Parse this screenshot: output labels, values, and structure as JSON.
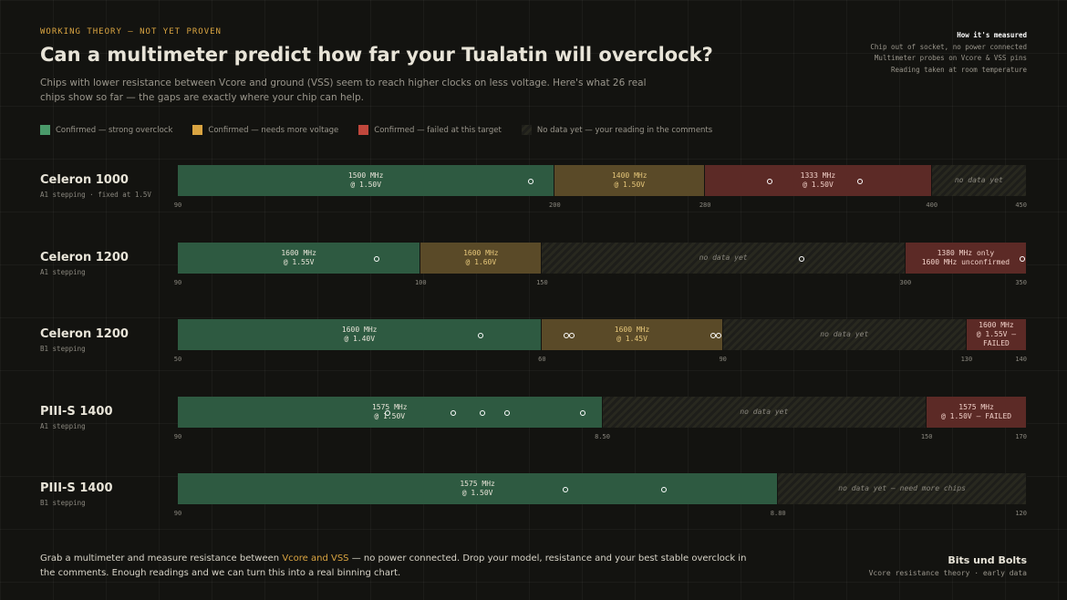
{
  "header": {
    "kicker": "WORKING THEORY — NOT YET PROVEN",
    "title": "Can a multimeter predict how far your Tualatin will overclock?",
    "subtitle": "Chips with lower resistance between Vcore and ground (VSS) seem to reach higher clocks on less voltage. Here's what 26 real chips show so far — the gaps are exactly where your chip can help."
  },
  "measure": {
    "title": "How it's measured",
    "lines": [
      "Chip out of socket, no power connected",
      "Multimeter probes on Vcore & VSS pins",
      "Reading taken at room temperature"
    ]
  },
  "legend": [
    {
      "kind": "strong",
      "label": "Confirmed — strong overclock"
    },
    {
      "kind": "voltage",
      "label": "Confirmed — needs more voltage"
    },
    {
      "kind": "failed",
      "label": "Confirmed — failed at this target"
    },
    {
      "kind": "nodata",
      "label": "No data yet — your reading in the comments"
    }
  ],
  "rows": [
    {
      "name": "Celeron 1000",
      "note": "A1 stepping · fixed at 1.5V",
      "ticks": [
        "90",
        "200",
        "280",
        "400",
        "450"
      ],
      "segments": [
        {
          "kind": "strong",
          "label": "1500 MHz\n@ 1.50V"
        },
        {
          "kind": "voltage",
          "label": "1400 MHz\n@ 1.50V"
        },
        {
          "kind": "failed",
          "label": "1333 MHz\n@ 1.50V"
        },
        {
          "kind": "nodata",
          "label": "no data yet"
        }
      ]
    },
    {
      "name": "Celeron 1200",
      "note": "A1 stepping",
      "ticks": [
        "90",
        "100",
        "150",
        "300",
        "350"
      ],
      "segments": [
        {
          "kind": "strong",
          "label": "1600 MHz\n@ 1.55V"
        },
        {
          "kind": "voltage",
          "label": "1600 MHz\n@ 1.60V"
        },
        {
          "kind": "nodata",
          "label": "no data yet"
        },
        {
          "kind": "failed",
          "label": "1380 MHz only\n1600 MHz unconfirmed"
        }
      ]
    },
    {
      "name": "Celeron 1200",
      "note": "B1 stepping",
      "ticks": [
        "50",
        "60",
        "90",
        "130",
        "140"
      ],
      "segments": [
        {
          "kind": "strong",
          "label": "1600 MHz\n@ 1.40V"
        },
        {
          "kind": "voltage",
          "label": "1600 MHz\n@ 1.45V"
        },
        {
          "kind": "nodata",
          "label": "no data yet"
        },
        {
          "kind": "failed",
          "label": "1600 MHz\n@ 1.55V —\nFAILED"
        }
      ]
    },
    {
      "name": "PIII-S 1400",
      "note": "A1 stepping",
      "ticks": [
        "90",
        "8.50",
        "150",
        "170"
      ],
      "segments": [
        {
          "kind": "strong",
          "label": "1575 MHz\n@ 1.50V"
        },
        {
          "kind": "nodata",
          "label": "no data yet"
        },
        {
          "kind": "failed",
          "label": "1575 MHz\n@ 1.50V — FAILED"
        }
      ]
    },
    {
      "name": "PIII-S 1400",
      "note": "B1 stepping",
      "ticks": [
        "90",
        "8.80",
        "120"
      ],
      "segments": [
        {
          "kind": "strong",
          "label": "1575 MHz\n@ 1.50V"
        },
        {
          "kind": "nodata",
          "label": "no data yet — need more chips"
        }
      ]
    }
  ],
  "footer": {
    "before": "Grab a multimeter and measure resistance between ",
    "highlight": "Vcore and VSS",
    "after": " — no power connected. Drop your model, resistance and your best stable overclock in the comments. Enough readings and we can turn this into a real binning chart.",
    "brand": "Bits und Bolts",
    "tagline": "Vcore resistance theory · early data"
  }
}
